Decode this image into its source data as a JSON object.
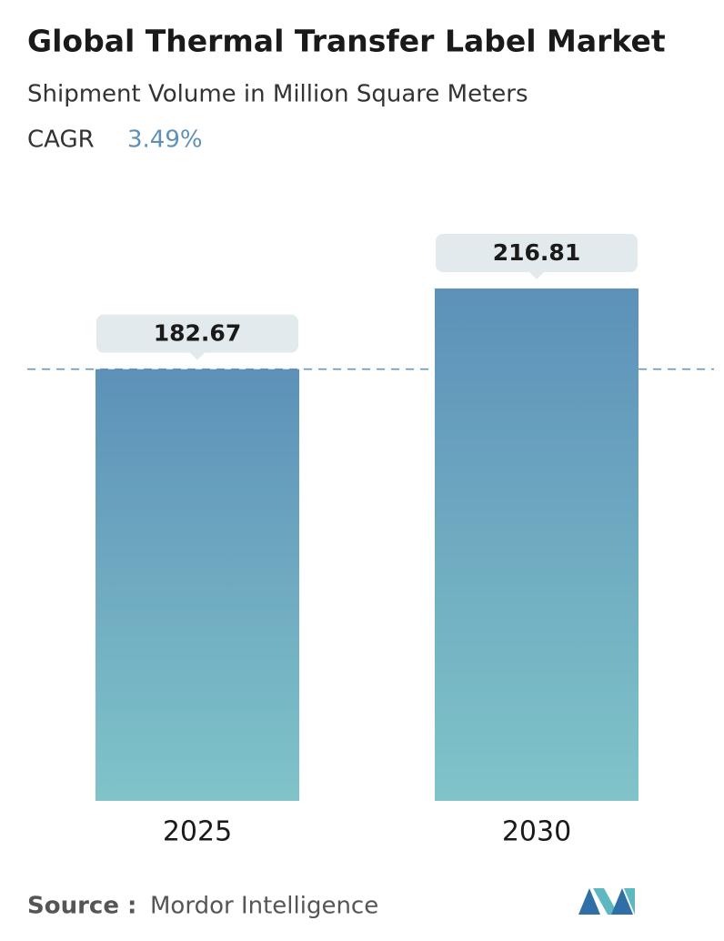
{
  "chart_data": {
    "type": "bar",
    "title": "Global Thermal Transfer Label Market",
    "subtitle": "Shipment Volume in Million Square Meters",
    "cagr_label": "CAGR",
    "cagr": "3.49%",
    "categories": [
      "2025",
      "2030"
    ],
    "values": [
      182.67,
      216.81
    ],
    "color": "#5d91b9",
    "color_bottom": "#80c4c9",
    "reference_line": true,
    "source_label": "Source :",
    "source": "Mordor Intelligence"
  }
}
